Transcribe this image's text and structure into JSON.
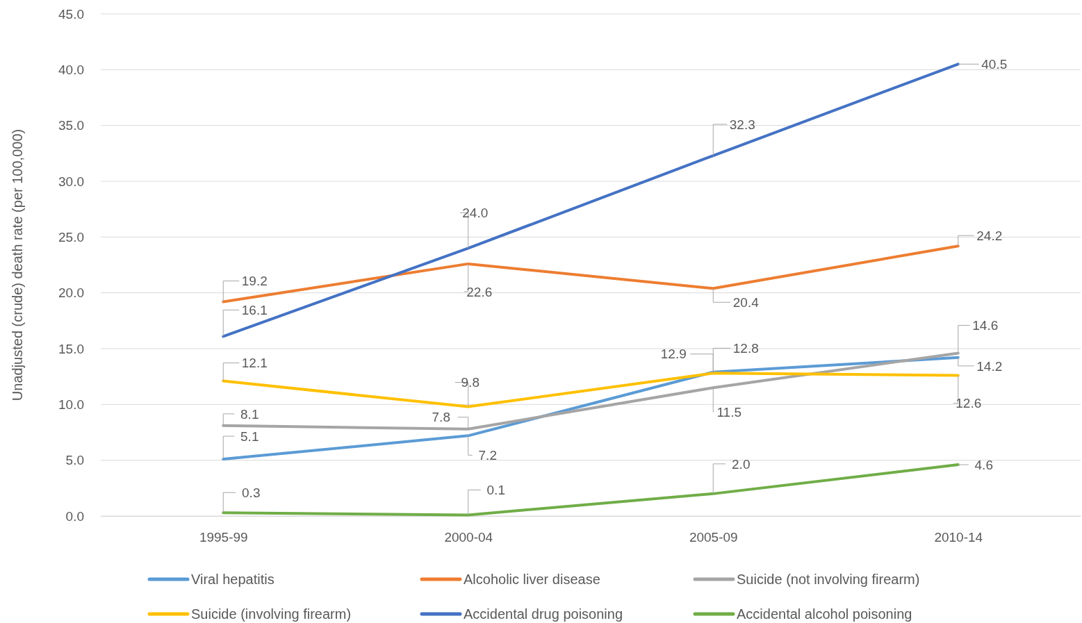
{
  "chart_data": {
    "type": "line",
    "ylabel": "Unadjusted (crude) death rate (per 100,000)",
    "categories": [
      "1995-99",
      "2000-04",
      "2005-09",
      "2010-14"
    ],
    "ylim": [
      0,
      45
    ],
    "yticks": [
      {
        "value": 0,
        "label": "0.0"
      },
      {
        "value": 5,
        "label": "5.0"
      },
      {
        "value": 10,
        "label": "10.0"
      },
      {
        "value": 15,
        "label": "15.0"
      },
      {
        "value": 20,
        "label": "20.0"
      },
      {
        "value": 25,
        "label": "25.0"
      },
      {
        "value": 30,
        "label": "30.0"
      },
      {
        "value": 35,
        "label": "35.0"
      },
      {
        "value": 40,
        "label": "40.0"
      },
      {
        "value": 45,
        "label": "45.0"
      }
    ],
    "grid": "y",
    "legend": "bottom",
    "series": [
      {
        "name": "Viral hepatitis",
        "color": "#5b9bd5",
        "values": [
          5.1,
          7.2,
          12.9,
          14.2
        ],
        "value_labels": [
          "5.1",
          "7.2",
          "12.9",
          "14.2"
        ]
      },
      {
        "name": "Alcoholic liver disease",
        "color": "#ed7d31",
        "values": [
          19.2,
          22.6,
          20.4,
          24.2
        ],
        "value_labels": [
          "19.2",
          "22.6",
          "20.4",
          "24.2"
        ]
      },
      {
        "name": "Suicide (not involving firearm)",
        "color": "#a5a5a5",
        "values": [
          8.1,
          7.8,
          11.5,
          14.6
        ],
        "value_labels": [
          "8.1",
          "7.8",
          "11.5",
          "14.6"
        ]
      },
      {
        "name": "Suicide (involving firearm)",
        "color": "#ffc000",
        "values": [
          12.1,
          9.8,
          12.8,
          12.6
        ],
        "value_labels": [
          "12.1",
          "9.8",
          "12.8",
          "12.6"
        ]
      },
      {
        "name": "Accidental drug poisoning",
        "color": "#4472c4",
        "values": [
          16.1,
          24.0,
          32.3,
          40.5
        ],
        "value_labels": [
          "16.1",
          "24.0",
          "32.3",
          "40.5"
        ]
      },
      {
        "name": "Accidental alcohol poisoning",
        "color": "#70ad47",
        "values": [
          0.3,
          0.1,
          2.0,
          4.6
        ],
        "value_labels": [
          "0.3",
          "0.1",
          "2.0",
          "4.6"
        ]
      }
    ]
  }
}
